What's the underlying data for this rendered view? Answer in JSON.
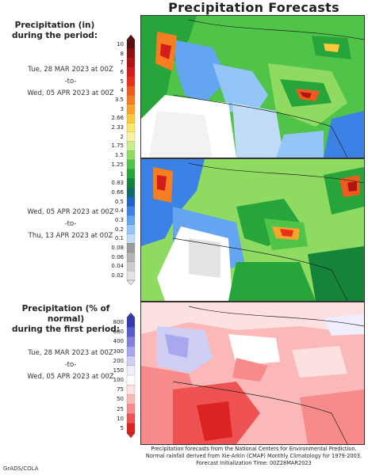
{
  "title": "Precipitation Forecasts",
  "section1": {
    "header_lines": [
      "Precipitation (in)",
      "during the period:"
    ],
    "start": "Tue, 28 MAR 2023 at 00Z",
    "sep": "-to-",
    "end": "Wed, 05 APR 2023 at 00Z"
  },
  "section2": {
    "start": "Wed, 05 APR 2023 at 00Z",
    "sep": "-to-",
    "end": "Thu, 13 APR 2023 at 00Z"
  },
  "section3": {
    "header_lines": [
      "Precipitation (% of normal)",
      "during the first period:"
    ],
    "start": "Tue, 28 MAR 2023 at 00Z",
    "sep": "-to-",
    "end": "Wed, 05 APR 2023 at 00Z"
  },
  "precip_scale": {
    "labels": [
      "10",
      "8",
      "7",
      "6",
      "5",
      "4",
      "3.5",
      "3",
      "2.66",
      "2.33",
      "2",
      "1.75",
      "1.5",
      "1.25",
      "1",
      "0.83",
      "0.66",
      "0.5",
      "0.4",
      "0.3",
      "0.2",
      "0.1",
      "0.08",
      "0.06",
      "0.04",
      "0.02"
    ],
    "colors": [
      "#5a0f0f",
      "#8c1010",
      "#b01414",
      "#d41c1c",
      "#e8301c",
      "#f05a1c",
      "#f57f20",
      "#f9a52a",
      "#fcc93a",
      "#fde86a",
      "#f7f3a2",
      "#c9ed8a",
      "#8fdb62",
      "#4fc448",
      "#27a43a",
      "#14843a",
      "#0e6e66",
      "#1e64c8",
      "#3c82e6",
      "#64a5f2",
      "#93c5f7",
      "#c0dcf9",
      "#9b9b9b",
      "#b4b4b4",
      "#cdcdcd",
      "#e4e4e4"
    ]
  },
  "pct_scale": {
    "labels": [
      "800",
      "600",
      "400",
      "300",
      "200",
      "150",
      "100",
      "75",
      "50",
      "25",
      "10",
      "5"
    ],
    "colors": [
      "#3a3ab0",
      "#5a5ad0",
      "#8080e0",
      "#a8a8ee",
      "#cfcff6",
      "#eeeeff",
      "#ffffff",
      "#fde0e0",
      "#fbb8b8",
      "#f78a8a",
      "#ee5252",
      "#dc2222"
    ]
  },
  "footer_lines": [
    "Precipitation forecasts from the National Centers for Environmental Prediction.",
    "Normal rainfall derived from Xie-Arkin (CMAP) Monthly Climatology for 1979-2003.",
    "Forecast Initialization Time: 00Z28MAR2023"
  ],
  "credit": "GrADS/COLA"
}
